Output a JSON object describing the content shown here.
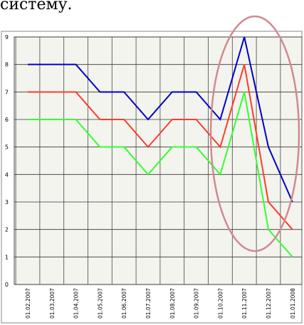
{
  "caption_fragment": "систему.",
  "chart_data": {
    "type": "line",
    "categories": [
      "01.02.2007",
      "01.03.2007",
      "01.04.2007",
      "01.05.2007",
      "01.06.2007",
      "01.07.2007",
      "01.08.2007",
      "01.09.2007",
      "01.10.2007",
      "01.11.2007",
      "01.12.2007",
      "01.01.2008"
    ],
    "y_ticks": [
      0,
      1,
      2,
      3,
      4,
      5,
      6,
      7,
      8,
      9
    ],
    "ylim": [
      0,
      9
    ],
    "grid": true,
    "legend": "none",
    "series": [
      {
        "color": "#0000c8",
        "values": [
          8,
          8,
          8,
          7,
          7,
          6,
          7,
          7,
          6,
          9,
          5,
          3
        ]
      },
      {
        "color": "#ff3b30",
        "values": [
          7,
          7,
          7,
          6,
          6,
          5,
          6,
          6,
          5,
          8,
          3,
          2
        ]
      },
      {
        "color": "#33ff33",
        "values": [
          6,
          6,
          6,
          5,
          5,
          4,
          5,
          5,
          4,
          7,
          2,
          1
        ]
      }
    ],
    "annotation": {
      "shape": "ellipse",
      "color": "#d08a90"
    }
  }
}
